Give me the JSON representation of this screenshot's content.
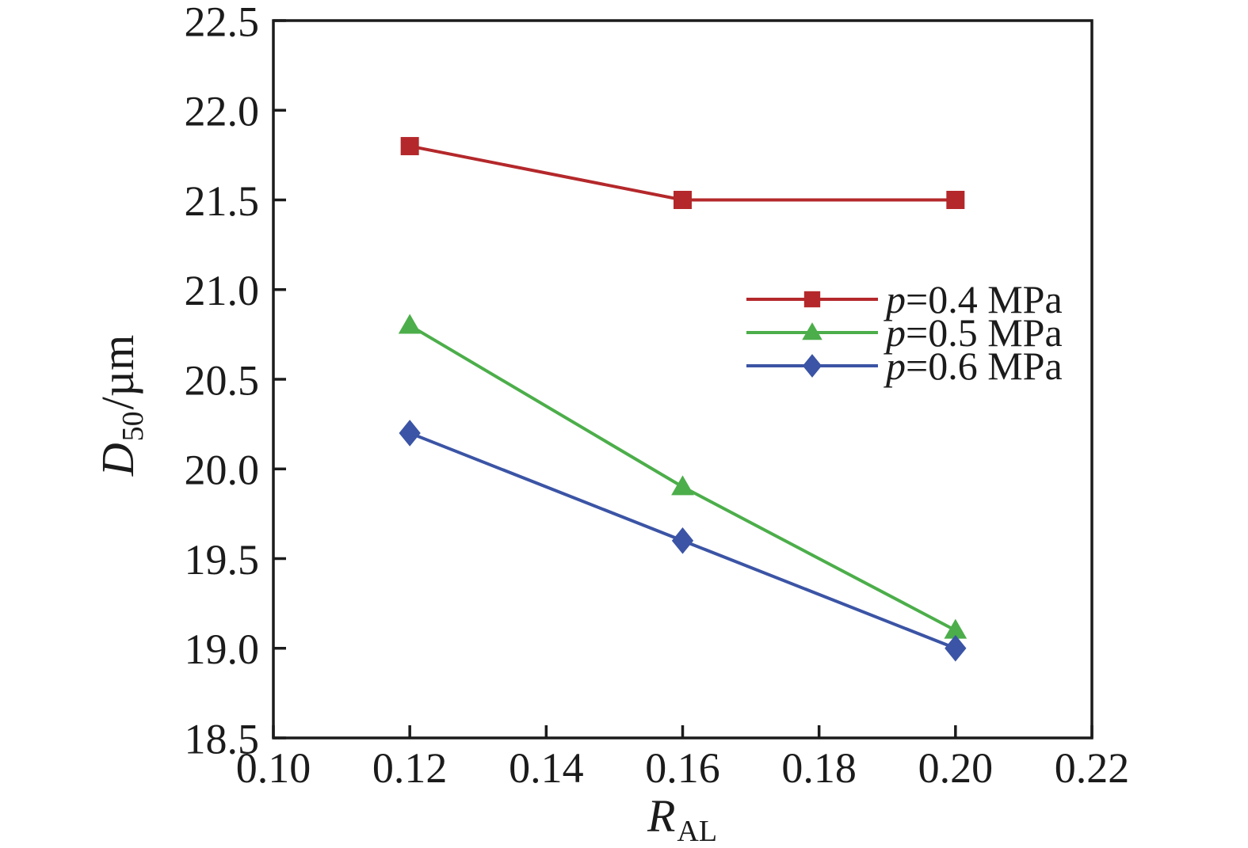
{
  "figure": {
    "background": "#ffffff",
    "axis_color": "#1b1b1b"
  },
  "chart_data": {
    "type": "line",
    "x": [
      0.12,
      0.16,
      0.2
    ],
    "series": [
      {
        "name": "p=0.4 MPa",
        "marker": "square",
        "color": "#b4282b",
        "values": [
          21.8,
          21.5,
          21.5
        ]
      },
      {
        "name": "p=0.5 MPa",
        "marker": "triangle",
        "color": "#4cae4a",
        "values": [
          20.8,
          19.9,
          19.1
        ]
      },
      {
        "name": "p=0.6 MPa",
        "marker": "diamond",
        "color": "#3b54a5",
        "values": [
          20.2,
          19.6,
          19.0
        ]
      }
    ],
    "xlabel": {
      "main": "R",
      "sub": "AL"
    },
    "ylabel": {
      "main": "D",
      "sub": "50",
      "rest": "/µm"
    },
    "xlim": [
      0.1,
      0.22
    ],
    "ylim": [
      18.5,
      22.5
    ],
    "xtick_labels": [
      "0.10",
      "0.12",
      "0.14",
      "0.16",
      "0.18",
      "0.20",
      "0.22"
    ],
    "ytick_labels": [
      "18.5",
      "19.0",
      "19.5",
      "20.0",
      "20.5",
      "21.0",
      "21.5",
      "22.0",
      "22.5"
    ],
    "grid": false,
    "legend_position": "right-center"
  }
}
